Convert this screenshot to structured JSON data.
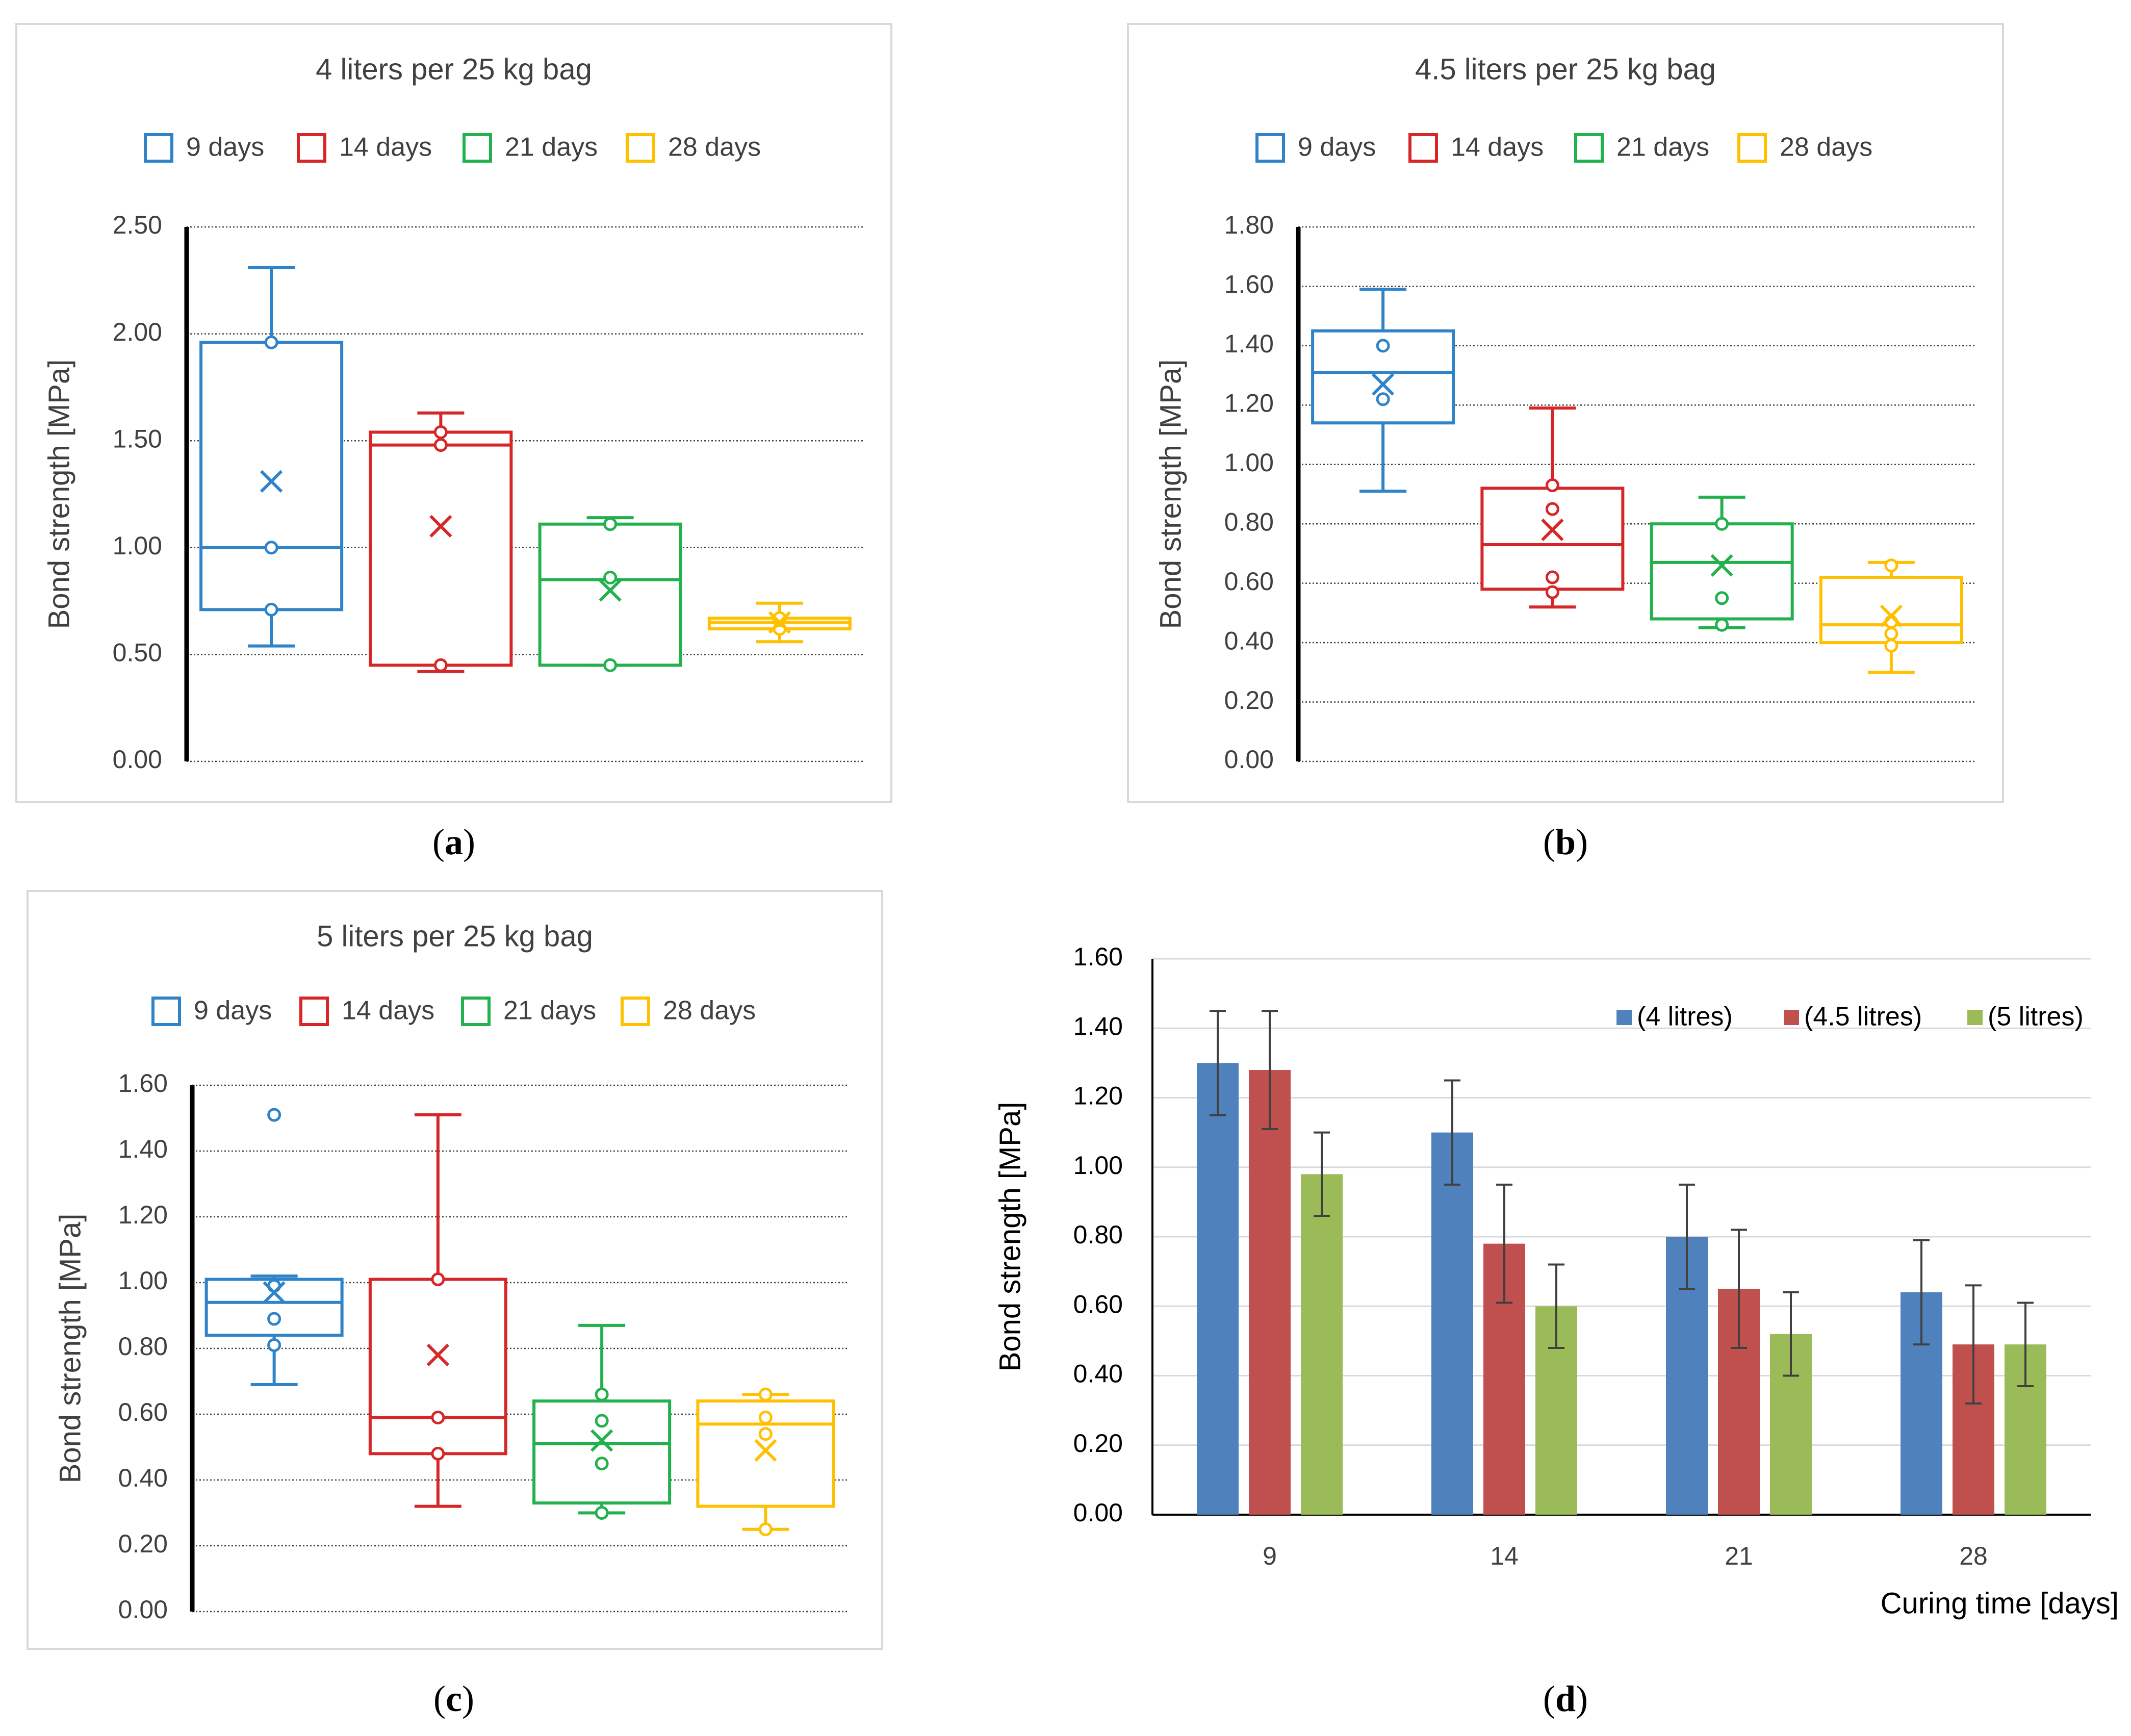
{
  "chart_data": [
    {
      "id": "a",
      "type": "box",
      "caption_letter": "a",
      "title": "4 liters per 25 kg bag",
      "ylabel": "Bond strength  [MPa]",
      "ylim": [
        0,
        2.5
      ],
      "yticks": [
        "0.00",
        "0.50",
        "1.00",
        "1.50",
        "2.00",
        "2.50"
      ],
      "tick_step": 0.5,
      "legend": [
        "9 days",
        "14 days",
        "21 days",
        "28 days"
      ],
      "boxes": [
        {
          "name": "9 days",
          "color": "#2f83c9",
          "whisker_low": 0.54,
          "q1": 0.71,
          "median": 1.0,
          "q3": 1.96,
          "whisker_high": 2.31,
          "mean": 1.31,
          "points": [
            0.71,
            1.0,
            1.96
          ]
        },
        {
          "name": "14 days",
          "color": "#d62628",
          "whisker_low": 0.42,
          "q1": 0.45,
          "median": 1.48,
          "q3": 1.54,
          "whisker_high": 1.63,
          "mean": 1.1,
          "points": [
            0.45,
            1.48,
            1.54
          ]
        },
        {
          "name": "21 days",
          "color": "#22b14c",
          "whisker_low": 0.45,
          "q1": 0.45,
          "median": 0.85,
          "q3": 1.11,
          "whisker_high": 1.14,
          "mean": 0.8,
          "points": [
            0.45,
            0.86,
            1.11
          ]
        },
        {
          "name": "28 days",
          "color": "#ffc000",
          "whisker_low": 0.56,
          "q1": 0.62,
          "median": 0.65,
          "q3": 0.67,
          "whisker_high": 0.74,
          "mean": 0.65,
          "points": [
            0.62,
            0.66,
            0.67
          ]
        }
      ]
    },
    {
      "id": "b",
      "type": "box",
      "caption_letter": "b",
      "title": "4.5 liters per 25 kg bag",
      "ylabel": "Bond strength  [MPa]",
      "ylim": [
        0,
        1.8
      ],
      "yticks": [
        "0.00",
        "0.20",
        "0.40",
        "0.60",
        "0.80",
        "1.00",
        "1.20",
        "1.40",
        "1.60",
        "1.80"
      ],
      "tick_step": 0.2,
      "legend": [
        "9 days",
        "14 days",
        "21 days",
        "28 days"
      ],
      "boxes": [
        {
          "name": "9 days",
          "color": "#2f83c9",
          "whisker_low": 0.91,
          "q1": 1.14,
          "median": 1.31,
          "q3": 1.45,
          "whisker_high": 1.59,
          "mean": 1.27,
          "points": [
            1.22,
            1.4
          ]
        },
        {
          "name": "14 days",
          "color": "#d62628",
          "whisker_low": 0.52,
          "q1": 0.58,
          "median": 0.73,
          "q3": 0.92,
          "whisker_high": 1.19,
          "mean": 0.78,
          "points": [
            0.57,
            0.62,
            0.85,
            0.93
          ]
        },
        {
          "name": "21 days",
          "color": "#22b14c",
          "whisker_low": 0.45,
          "q1": 0.48,
          "median": 0.67,
          "q3": 0.8,
          "whisker_high": 0.89,
          "mean": 0.66,
          "points": [
            0.46,
            0.55,
            0.8
          ]
        },
        {
          "name": "28 days",
          "color": "#ffc000",
          "whisker_low": 0.3,
          "q1": 0.4,
          "median": 0.46,
          "q3": 0.62,
          "whisker_high": 0.67,
          "mean": 0.49,
          "points": [
            0.39,
            0.43,
            0.47,
            0.66
          ]
        }
      ]
    },
    {
      "id": "c",
      "type": "box",
      "caption_letter": "c",
      "title": "5 liters per 25 kg bag",
      "ylabel": "Bond strength  [MPa]",
      "ylim": [
        0,
        1.6
      ],
      "yticks": [
        "0.00",
        "0.20",
        "0.40",
        "0.60",
        "0.80",
        "1.00",
        "1.20",
        "1.40",
        "1.60"
      ],
      "tick_step": 0.2,
      "legend": [
        "9 days",
        "14 days",
        "21 days",
        "28 days"
      ],
      "boxes": [
        {
          "name": "9 days",
          "color": "#2f83c9",
          "whisker_low": 0.69,
          "q1": 0.84,
          "median": 0.94,
          "q3": 1.01,
          "whisker_high": 1.02,
          "mean": 0.97,
          "points": [
            0.81,
            0.89,
            0.99,
            1.51
          ]
        },
        {
          "name": "14 days",
          "color": "#d62628",
          "whisker_low": 0.32,
          "q1": 0.48,
          "median": 0.59,
          "q3": 1.01,
          "whisker_high": 1.51,
          "mean": 0.78,
          "points": [
            0.48,
            0.59,
            1.01
          ]
        },
        {
          "name": "21 days",
          "color": "#22b14c",
          "whisker_low": 0.3,
          "q1": 0.33,
          "median": 0.51,
          "q3": 0.64,
          "whisker_high": 0.87,
          "mean": 0.52,
          "points": [
            0.3,
            0.45,
            0.58,
            0.66
          ]
        },
        {
          "name": "28 days",
          "color": "#ffc000",
          "whisker_low": 0.25,
          "q1": 0.32,
          "median": 0.57,
          "q3": 0.64,
          "whisker_high": 0.66,
          "mean": 0.49,
          "points": [
            0.25,
            0.54,
            0.59,
            0.66
          ]
        }
      ]
    },
    {
      "id": "d",
      "type": "bar",
      "caption_letter": "d",
      "title": "",
      "ylabel": "Bond  strength  [MPa]",
      "xlabel": "Curing time   [days]",
      "ylim": [
        0,
        1.6
      ],
      "yticks": [
        "0.00",
        "0.20",
        "0.40",
        "0.60",
        "0.80",
        "1.00",
        "1.20",
        "1.40",
        "1.60"
      ],
      "tick_step": 0.2,
      "categories": [
        "9",
        "14",
        "21",
        "28"
      ],
      "series": [
        {
          "name": "(4 litres)",
          "color": "#4f81bd",
          "values": [
            1.3,
            1.1,
            0.8,
            0.64
          ],
          "errors": [
            0.15,
            0.15,
            0.15,
            0.15
          ]
        },
        {
          "name": "(4.5 litres)",
          "color": "#c0504d",
          "values": [
            1.28,
            0.78,
            0.65,
            0.49
          ],
          "errors": [
            0.17,
            0.17,
            0.17,
            0.17
          ]
        },
        {
          "name": "(5 litres)",
          "color": "#9bbb59",
          "values": [
            0.98,
            0.6,
            0.52,
            0.49
          ],
          "errors": [
            0.12,
            0.12,
            0.12,
            0.12
          ]
        }
      ]
    }
  ]
}
